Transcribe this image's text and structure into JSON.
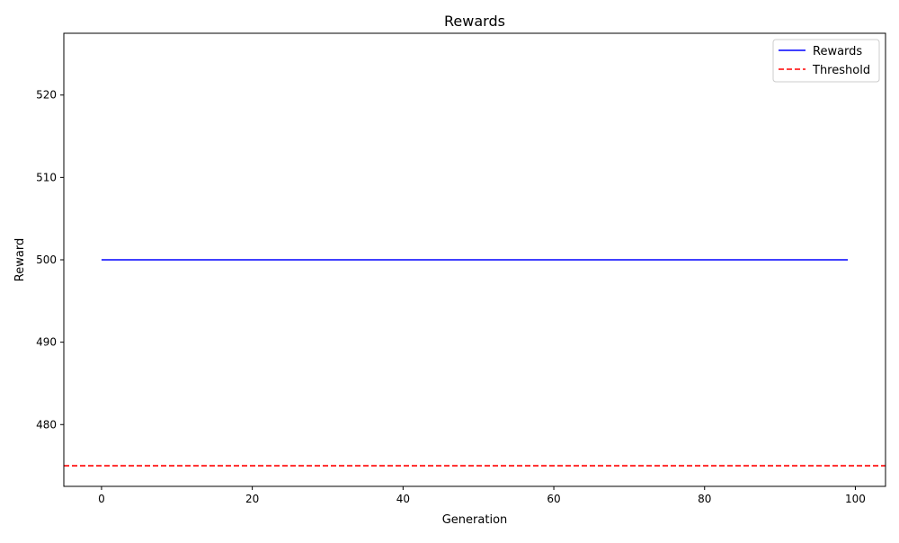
{
  "chart_data": {
    "type": "line",
    "title": "Rewards",
    "xlabel": "Generation",
    "ylabel": "Reward",
    "xlim": [
      -5,
      104
    ],
    "ylim": [
      472.5,
      527.5
    ],
    "xticks": [
      0,
      20,
      40,
      60,
      80,
      100
    ],
    "yticks": [
      480,
      490,
      500,
      510,
      520
    ],
    "grid": false,
    "legend_position": "top-right",
    "series": [
      {
        "name": "Rewards",
        "color": "#0000ff",
        "style": "solid",
        "x_start": 0,
        "x_end": 99,
        "y": 500
      }
    ],
    "reference_lines": [
      {
        "name": "Threshold",
        "color": "#ff0000",
        "style": "dashed",
        "orientation": "horizontal",
        "y": 475
      }
    ]
  }
}
